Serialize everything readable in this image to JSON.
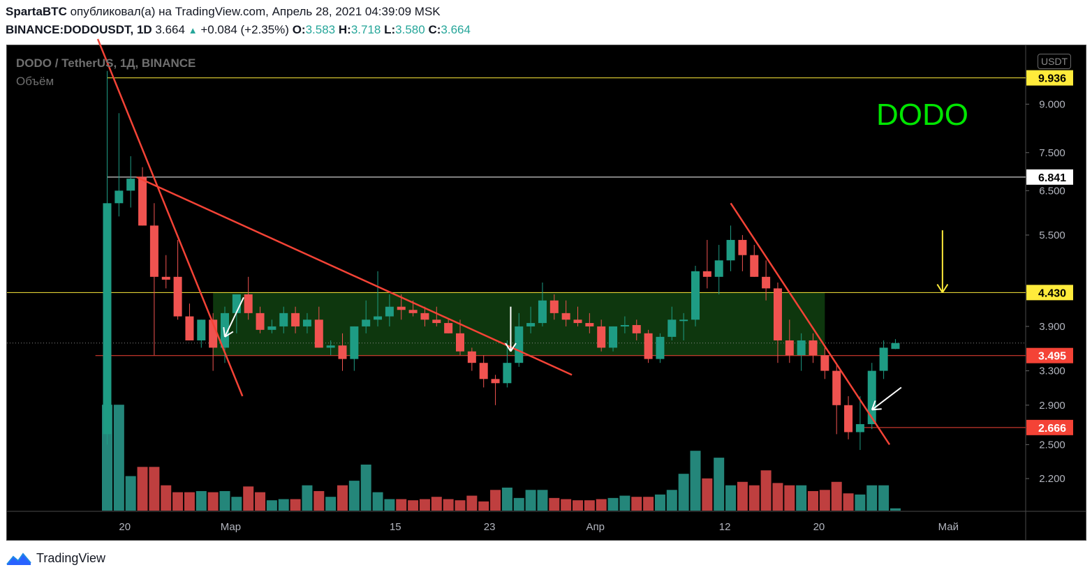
{
  "header": {
    "author": "SpartaBTC",
    "published": "опубликовал(а) на TradingView.com, Апрель 28, 2021 04:39:09 MSK",
    "symbol": "BINANCE:DODOUSDT, 1D",
    "last": "3.664",
    "change": "+0.084 (+2.35%)",
    "o_label": "O:",
    "o": "3.583",
    "h_label": "H:",
    "h": "3.718",
    "l_label": "L:",
    "l": "3.580",
    "c_label": "C:",
    "c": "3.664"
  },
  "legend": {
    "title": "DODO / TetherUS, 1Д, BINANCE",
    "volume": "Объём"
  },
  "currency_button": "USDT",
  "annotation_text": "DODO",
  "footer": {
    "brand": "TradingView"
  },
  "colors": {
    "up": "#26a69a",
    "down": "#ef5350",
    "up_candle": "#1e9c84",
    "down_candle": "#f05350",
    "background": "#000000",
    "trendline": "#f44336",
    "zone": "#0f3d0f",
    "level_yellow": "#ffeb3b",
    "level_white": "#ffffff",
    "level_red": "#f44336",
    "dodo_text": "#00e600"
  },
  "chart_data": {
    "type": "candlestick",
    "title": "DODO / TetherUS, 1Д, BINANCE",
    "y_scale": "log",
    "ylim": [
      1.95,
      11.2
    ],
    "y_ticks": [
      "9.000",
      "7.500",
      "6.500",
      "5.500",
      "4.430",
      "3.900",
      "3.300",
      "2.900",
      "2.500",
      "2.200"
    ],
    "y_tick_values": [
      9.0,
      7.5,
      6.5,
      5.5,
      4.43,
      3.9,
      3.3,
      2.9,
      2.5,
      2.2
    ],
    "x_ticks": [
      "20",
      "Мар",
      "15",
      "23",
      "Апр",
      "12",
      "20",
      "Май"
    ],
    "x_tick_index": [
      1.5,
      10.5,
      24.5,
      32.5,
      41.5,
      52.5,
      60.5,
      71.5
    ],
    "last_price": 3.664,
    "candles": [
      {
        "o": 2.6,
        "h": 10.2,
        "l": 2.5,
        "c": 6.2
      },
      {
        "o": 6.2,
        "h": 8.7,
        "l": 5.9,
        "c": 6.5
      },
      {
        "o": 6.5,
        "h": 7.4,
        "l": 6.1,
        "c": 6.8
      },
      {
        "o": 6.85,
        "h": 7.1,
        "l": 5.7,
        "c": 5.7
      },
      {
        "o": 5.7,
        "h": 6.2,
        "l": 3.5,
        "c": 4.7
      },
      {
        "o": 4.7,
        "h": 5.1,
        "l": 4.5,
        "c": 4.65
      },
      {
        "o": 4.7,
        "h": 5.4,
        "l": 4.0,
        "c": 4.05
      },
      {
        "o": 4.05,
        "h": 4.25,
        "l": 3.7,
        "c": 3.7
      },
      {
        "o": 3.7,
        "h": 4.0,
        "l": 3.6,
        "c": 4.0
      },
      {
        "o": 4.0,
        "h": 4.1,
        "l": 3.3,
        "c": 3.6
      },
      {
        "o": 3.6,
        "h": 4.2,
        "l": 3.4,
        "c": 4.1
      },
      {
        "o": 4.1,
        "h": 4.4,
        "l": 3.8,
        "c": 4.4
      },
      {
        "o": 4.4,
        "h": 4.7,
        "l": 4.0,
        "c": 4.1
      },
      {
        "o": 4.1,
        "h": 4.2,
        "l": 3.8,
        "c": 3.85
      },
      {
        "o": 3.85,
        "h": 4.0,
        "l": 3.8,
        "c": 3.9
      },
      {
        "o": 3.9,
        "h": 4.2,
        "l": 3.8,
        "c": 4.1
      },
      {
        "o": 4.1,
        "h": 4.2,
        "l": 3.8,
        "c": 3.9
      },
      {
        "o": 3.9,
        "h": 4.1,
        "l": 3.8,
        "c": 4.0
      },
      {
        "o": 4.0,
        "h": 4.2,
        "l": 3.6,
        "c": 3.6
      },
      {
        "o": 3.6,
        "h": 3.7,
        "l": 3.5,
        "c": 3.63
      },
      {
        "o": 3.63,
        "h": 3.8,
        "l": 3.3,
        "c": 3.45
      },
      {
        "o": 3.45,
        "h": 3.9,
        "l": 3.3,
        "c": 3.9
      },
      {
        "o": 3.9,
        "h": 4.3,
        "l": 3.8,
        "c": 4.0
      },
      {
        "o": 4.0,
        "h": 4.8,
        "l": 3.9,
        "c": 4.05
      },
      {
        "o": 4.05,
        "h": 4.4,
        "l": 3.9,
        "c": 4.2
      },
      {
        "o": 4.2,
        "h": 4.4,
        "l": 4.0,
        "c": 4.15
      },
      {
        "o": 4.15,
        "h": 4.3,
        "l": 4.05,
        "c": 4.1
      },
      {
        "o": 4.1,
        "h": 4.2,
        "l": 3.9,
        "c": 4.0
      },
      {
        "o": 4.0,
        "h": 4.2,
        "l": 3.9,
        "c": 3.95
      },
      {
        "o": 3.95,
        "h": 4.0,
        "l": 3.8,
        "c": 3.8
      },
      {
        "o": 3.8,
        "h": 4.0,
        "l": 3.5,
        "c": 3.55
      },
      {
        "o": 3.55,
        "h": 3.6,
        "l": 3.3,
        "c": 3.4
      },
      {
        "o": 3.4,
        "h": 3.5,
        "l": 3.1,
        "c": 3.2
      },
      {
        "o": 3.2,
        "h": 3.25,
        "l": 2.9,
        "c": 3.15
      },
      {
        "o": 3.15,
        "h": 3.7,
        "l": 3.1,
        "c": 3.4
      },
      {
        "o": 3.4,
        "h": 4.1,
        "l": 3.35,
        "c": 3.9
      },
      {
        "o": 3.9,
        "h": 4.2,
        "l": 3.8,
        "c": 3.95
      },
      {
        "o": 3.95,
        "h": 4.6,
        "l": 3.9,
        "c": 4.3
      },
      {
        "o": 4.3,
        "h": 4.4,
        "l": 4.0,
        "c": 4.1
      },
      {
        "o": 4.1,
        "h": 4.3,
        "l": 3.9,
        "c": 4.0
      },
      {
        "o": 4.0,
        "h": 4.2,
        "l": 3.9,
        "c": 3.95
      },
      {
        "o": 3.95,
        "h": 4.1,
        "l": 3.8,
        "c": 3.9
      },
      {
        "o": 3.9,
        "h": 4.0,
        "l": 3.55,
        "c": 3.6
      },
      {
        "o": 3.6,
        "h": 3.9,
        "l": 3.55,
        "c": 3.9
      },
      {
        "o": 3.9,
        "h": 4.05,
        "l": 3.8,
        "c": 3.92
      },
      {
        "o": 3.92,
        "h": 4.0,
        "l": 3.7,
        "c": 3.8
      },
      {
        "o": 3.8,
        "h": 3.85,
        "l": 3.4,
        "c": 3.45
      },
      {
        "o": 3.45,
        "h": 3.8,
        "l": 3.4,
        "c": 3.75
      },
      {
        "o": 3.75,
        "h": 4.2,
        "l": 3.7,
        "c": 4.0
      },
      {
        "o": 4.0,
        "h": 4.1,
        "l": 3.7,
        "c": 4.0
      },
      {
        "o": 4.0,
        "h": 4.9,
        "l": 3.9,
        "c": 4.8
      },
      {
        "o": 4.8,
        "h": 5.4,
        "l": 4.5,
        "c": 4.7
      },
      {
        "o": 4.7,
        "h": 5.3,
        "l": 4.4,
        "c": 5.0
      },
      {
        "o": 5.0,
        "h": 5.7,
        "l": 4.8,
        "c": 5.4
      },
      {
        "o": 5.4,
        "h": 5.5,
        "l": 4.8,
        "c": 5.1
      },
      {
        "o": 5.1,
        "h": 5.3,
        "l": 4.7,
        "c": 4.7
      },
      {
        "o": 4.7,
        "h": 5.0,
        "l": 4.3,
        "c": 4.5
      },
      {
        "o": 4.5,
        "h": 4.6,
        "l": 3.4,
        "c": 3.7
      },
      {
        "o": 3.7,
        "h": 4.0,
        "l": 3.4,
        "c": 3.5
      },
      {
        "o": 3.5,
        "h": 3.8,
        "l": 3.3,
        "c": 3.7
      },
      {
        "o": 3.7,
        "h": 3.8,
        "l": 3.4,
        "c": 3.5
      },
      {
        "o": 3.5,
        "h": 3.6,
        "l": 3.2,
        "c": 3.3
      },
      {
        "o": 3.3,
        "h": 3.4,
        "l": 2.6,
        "c": 2.9
      },
      {
        "o": 2.9,
        "h": 3.0,
        "l": 2.55,
        "c": 2.62
      },
      {
        "o": 2.62,
        "h": 3.0,
        "l": 2.45,
        "c": 2.7
      },
      {
        "o": 2.7,
        "h": 3.4,
        "l": 2.65,
        "c": 3.3
      },
      {
        "o": 3.3,
        "h": 3.7,
        "l": 3.2,
        "c": 3.6
      },
      {
        "o": 3.583,
        "h": 3.718,
        "l": 3.58,
        "c": 3.664
      }
    ],
    "volume": [
      92,
      92,
      30,
      38,
      38,
      22,
      16,
      16,
      17,
      16,
      17,
      12,
      21,
      16,
      9,
      10,
      10,
      22,
      17,
      12,
      22,
      26,
      40,
      16,
      10,
      10,
      9,
      10,
      12,
      10,
      9,
      13,
      8,
      18,
      20,
      11,
      18,
      18,
      11,
      10,
      9,
      9,
      10,
      11,
      13,
      12,
      12,
      14,
      18,
      32,
      52,
      28,
      46,
      22,
      25,
      22,
      35,
      24,
      22,
      22,
      17,
      18,
      25,
      15,
      14,
      22,
      22,
      2
    ],
    "levels": [
      {
        "label": "9.936",
        "value": 9.936,
        "color": "#ffeb3b",
        "text_color": "#000000"
      },
      {
        "label": "6.841",
        "value": 6.841,
        "color": "#ffffff",
        "text_color": "#000000"
      },
      {
        "label": "4.430",
        "value": 4.43,
        "color": "#ffeb3b",
        "text_color": "#000000"
      },
      {
        "label": "3.495",
        "value": 3.495,
        "color": "#f44336",
        "text_color": "#ffffff"
      },
      {
        "label": "2.666",
        "value": 2.666,
        "color": "#f44336",
        "text_color": "#ffffff"
      }
    ],
    "zone": {
      "from_index": 9,
      "to_index": 61,
      "low": 3.495,
      "high": 4.43
    },
    "trendlines": [
      {
        "from": [
          -0.8,
          11.5
        ],
        "to": [
          11.5,
          3.0
        ]
      },
      {
        "from": [
          2.5,
          6.84
        ],
        "to": [
          39.5,
          3.25
        ]
      },
      {
        "from": [
          53.0,
          6.2
        ],
        "to": [
          66.5,
          2.5
        ]
      }
    ],
    "arrows": [
      {
        "color": "#ffffff",
        "from": [
          11.6,
          4.35
        ],
        "to": [
          10.0,
          3.75
        ]
      },
      {
        "color": "#ffffff",
        "from": [
          34.3,
          4.2
        ],
        "to": [
          34.3,
          3.55
        ]
      },
      {
        "color": "#ffffff",
        "from": [
          67.5,
          3.1
        ],
        "to": [
          65.0,
          2.85
        ]
      },
      {
        "color": "#ffeb3b",
        "from": [
          71.0,
          5.6
        ],
        "to": [
          71.0,
          4.43
        ]
      }
    ]
  }
}
